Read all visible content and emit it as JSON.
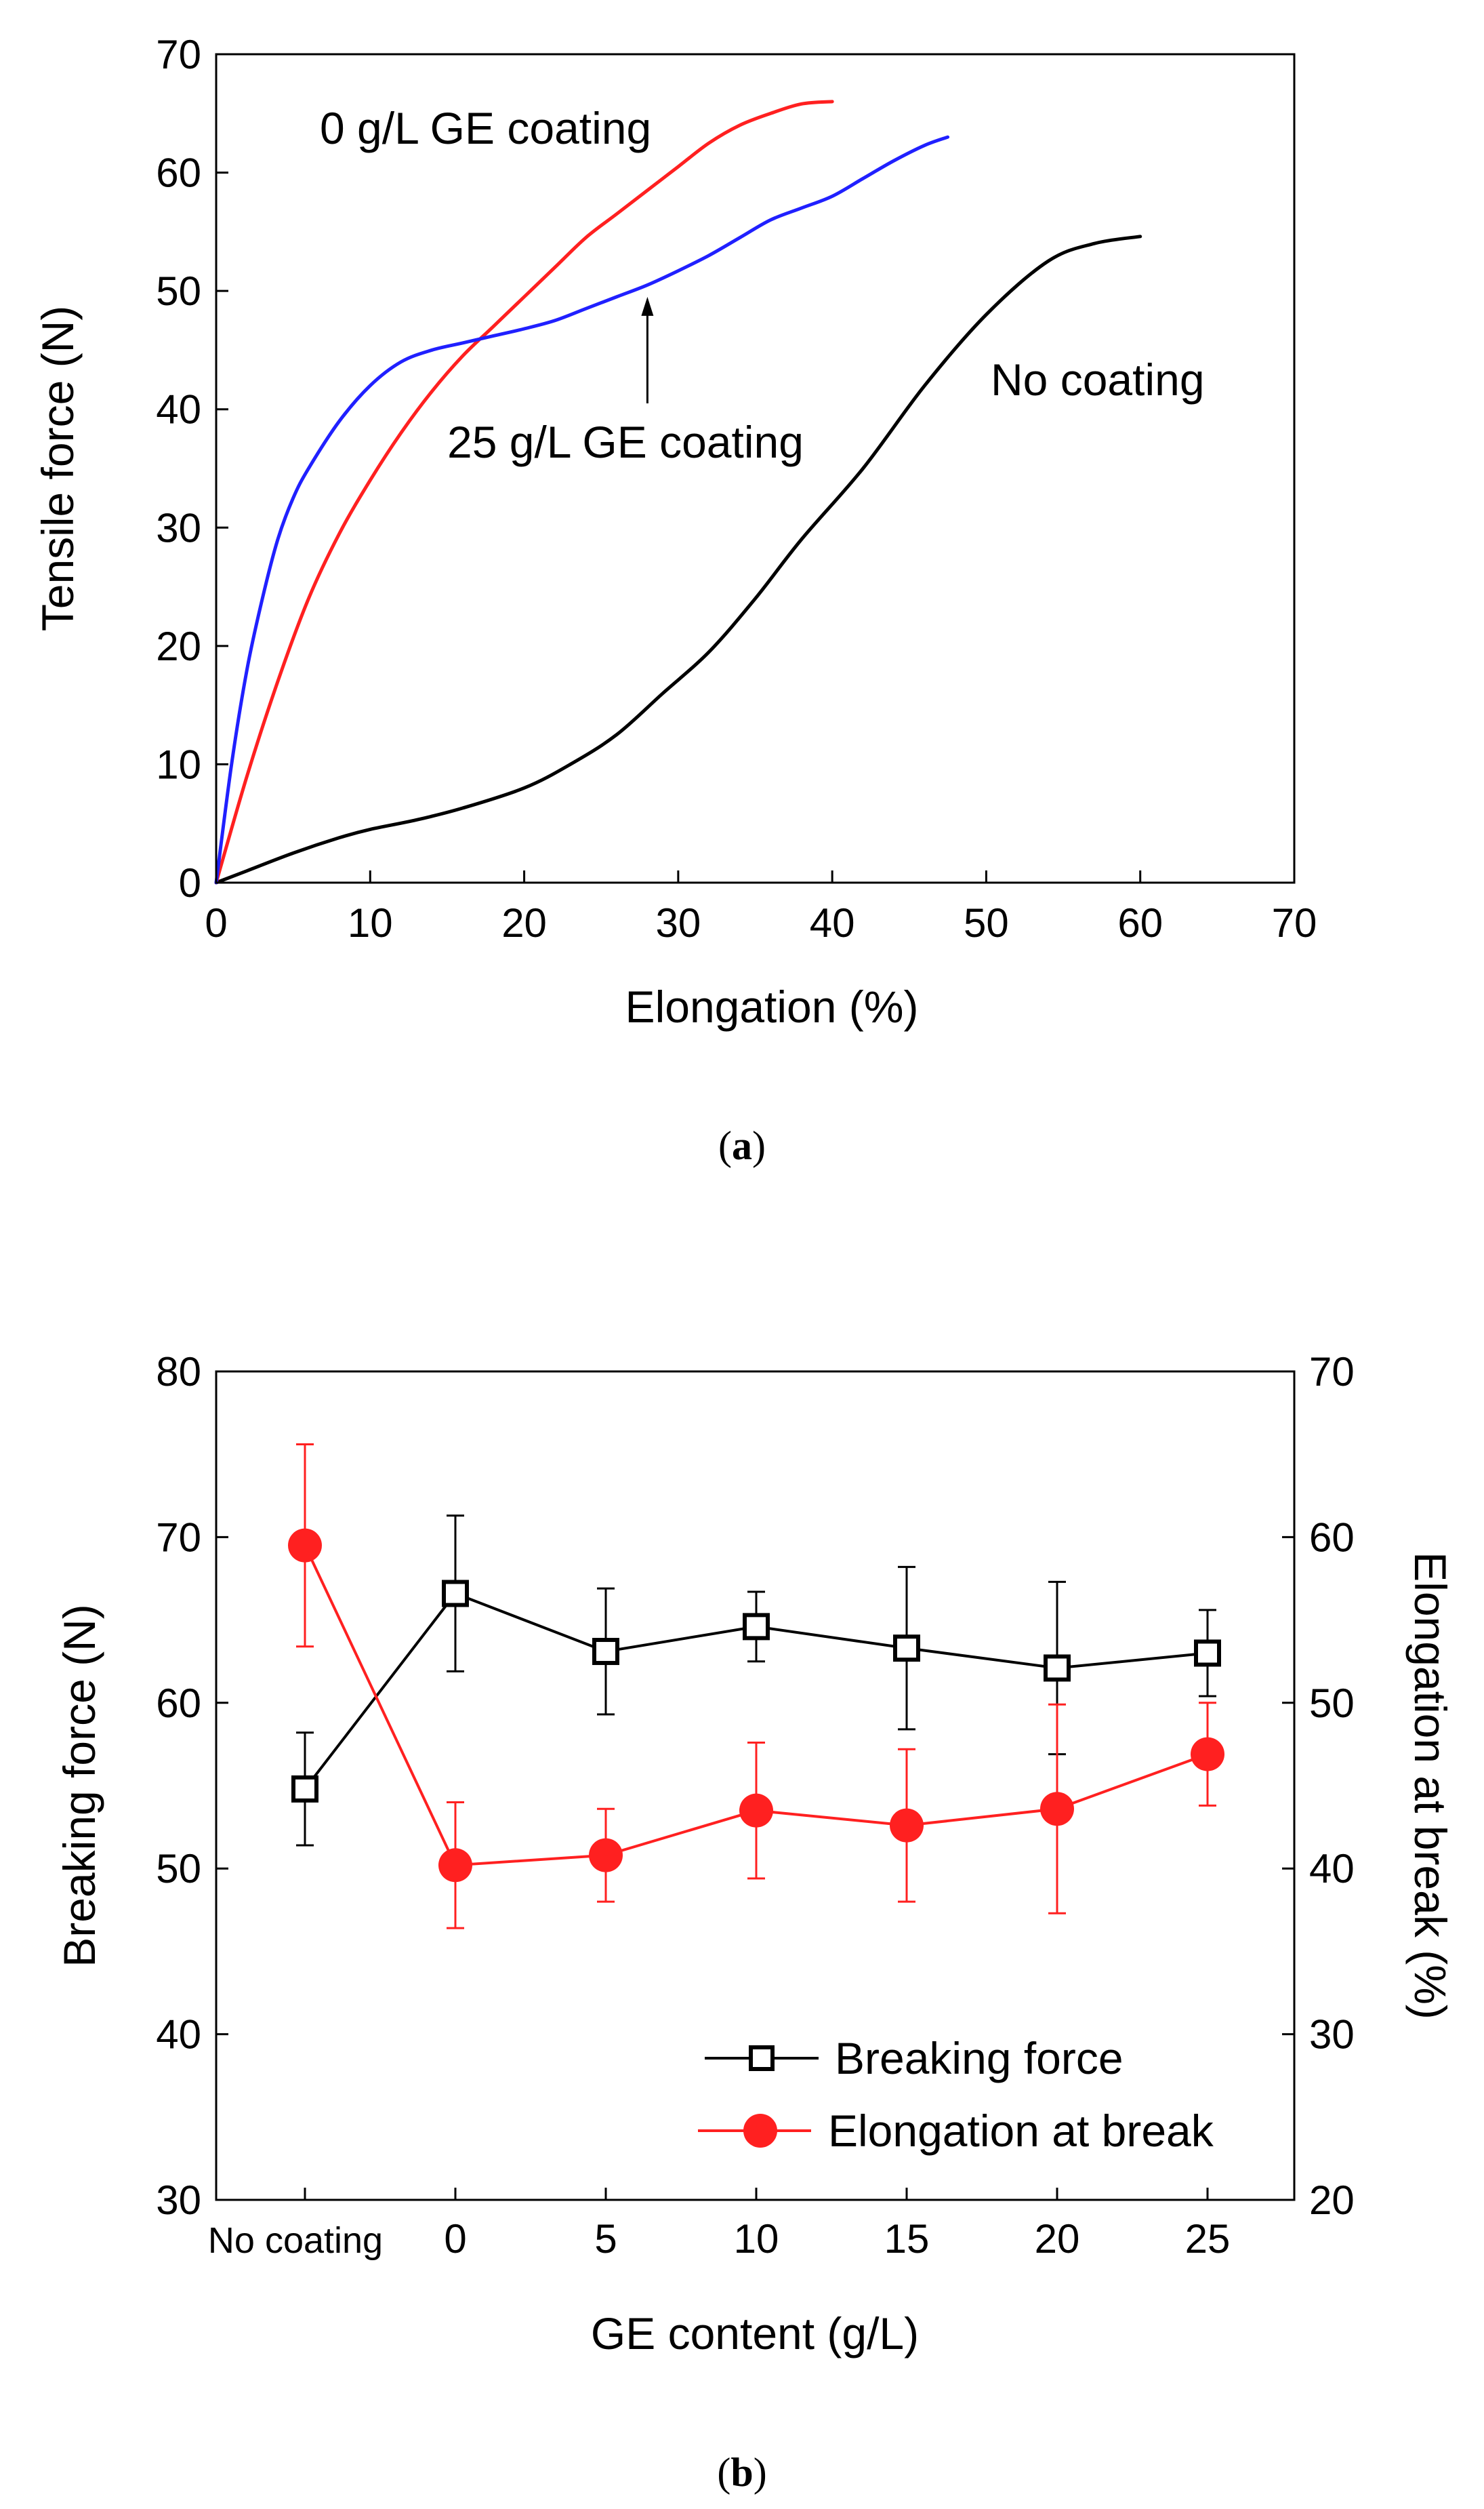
{
  "chart_data": [
    {
      "panel": "a",
      "panel_label": "a",
      "type": "line",
      "xlabel": "Elongation (%)",
      "ylabel": "Tensile force (N)",
      "xlim": [
        0,
        70
      ],
      "ylim": [
        0,
        70
      ],
      "xticks": [
        0,
        10,
        20,
        30,
        40,
        50,
        60,
        70
      ],
      "yticks": [
        0,
        10,
        20,
        30,
        40,
        50,
        60,
        70
      ],
      "grid": false,
      "colors": {
        "no_coating": "#000000",
        "ge0": "#ff2020",
        "ge25": "#2020ff"
      },
      "series": [
        {
          "name": "No coating",
          "key": "no_coating",
          "x": [
            0,
            2,
            5,
            8,
            10,
            13,
            16,
            20,
            23,
            26,
            29,
            32,
            35,
            38,
            42,
            46,
            50,
            54,
            57,
            60
          ],
          "y": [
            0,
            1,
            2.5,
            3.8,
            4.5,
            5.3,
            6.3,
            8,
            10,
            12.5,
            16,
            19.5,
            24,
            29,
            35,
            42,
            48,
            52.5,
            54,
            54.6
          ]
        },
        {
          "name": "0 g/L GE coating",
          "key": "ge0",
          "x": [
            0,
            2,
            4,
            6,
            8,
            10,
            12,
            14,
            16,
            18,
            20,
            22,
            24,
            26,
            28,
            30,
            32,
            34,
            36,
            38,
            40
          ],
          "y": [
            0,
            9,
            17,
            24,
            29.5,
            34,
            38,
            41.5,
            44.5,
            47,
            49.5,
            52,
            54.5,
            56.5,
            58.5,
            60.5,
            62.5,
            64,
            65,
            65.8,
            66
          ]
        },
        {
          "name": "25 g/L GE coating",
          "key": "ge25",
          "x": [
            0,
            1,
            2,
            3,
            4,
            5,
            6,
            8,
            10,
            12,
            14,
            16,
            18,
            20,
            22,
            24,
            26,
            28,
            30,
            32,
            34,
            36,
            38,
            40,
            42,
            44,
            46,
            47.5
          ],
          "y": [
            0,
            10,
            18,
            24,
            29,
            32.5,
            35,
            39,
            42,
            44,
            45,
            45.6,
            46.2,
            46.8,
            47.5,
            48.5,
            49.5,
            50.5,
            51.7,
            53,
            54.5,
            56,
            57,
            58,
            59.5,
            61,
            62.3,
            63
          ]
        }
      ],
      "annotations": [
        {
          "text": "0 g/L GE coating",
          "for": "ge0"
        },
        {
          "text": "25 g/L GE coating",
          "for": "ge25",
          "arrow": true,
          "arrow_x": 28,
          "arrow_from_y": 40.5,
          "arrow_to_y": 49.5
        },
        {
          "text": "No coating",
          "for": "no_coating"
        }
      ]
    },
    {
      "panel": "b",
      "panel_label": "b",
      "type": "line",
      "xlabel": "GE content (g/L)",
      "ylabel_left": "Breaking force (N)",
      "ylabel_right": "Elongation at break (%)",
      "categories": [
        "No coating",
        "0",
        "5",
        "10",
        "15",
        "20",
        "25"
      ],
      "ylim_left": [
        30,
        80
      ],
      "ylim_right": [
        20,
        70
      ],
      "yticks_left": [
        30,
        40,
        50,
        60,
        70,
        80
      ],
      "yticks_right": [
        20,
        30,
        40,
        50,
        60,
        70
      ],
      "grid": false,
      "legend_position": "bottom-right",
      "series": [
        {
          "name": "Breaking force",
          "axis": "left",
          "marker": "open-square",
          "color": "#000000",
          "values": [
            54.8,
            66.6,
            63.1,
            64.6,
            63.3,
            62.1,
            63.0
          ],
          "err": [
            3.4,
            4.7,
            3.8,
            2.1,
            4.9,
            5.2,
            2.6
          ]
        },
        {
          "name": "Elongation at break",
          "axis": "right",
          "marker": "filled-circle",
          "color": "#ff2020",
          "values": [
            59.5,
            40.2,
            40.8,
            43.5,
            42.6,
            43.6,
            46.9
          ],
          "err": [
            6.1,
            3.8,
            2.8,
            4.1,
            4.6,
            6.3,
            3.1
          ]
        }
      ]
    }
  ]
}
